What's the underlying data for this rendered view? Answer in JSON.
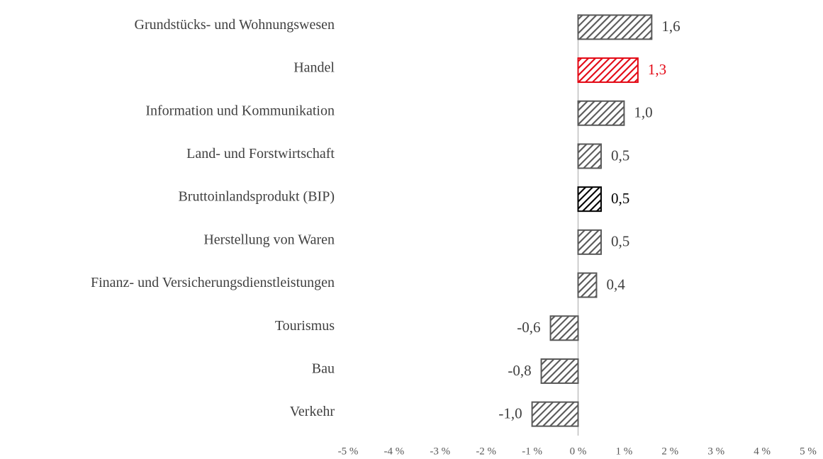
{
  "chart_data": {
    "type": "bar",
    "orientation": "horizontal",
    "categories": [
      "Grundstücks- und Wohnungswesen",
      "Handel",
      "Information und Kommunikation",
      "Land- und Forstwirtschaft",
      "Bruttoinlandsprodukt (BIP)",
      "Herstellung von Waren",
      "Finanz- und Versicherungsdienstleistungen",
      "Tourismus",
      "Bau",
      "Verkehr"
    ],
    "values": [
      1.6,
      1.3,
      1.0,
      0.5,
      0.5,
      0.5,
      0.4,
      -0.6,
      -0.8,
      -1.0
    ],
    "value_labels": [
      "1,6",
      "1,3",
      "1,0",
      "0,5",
      "0,5",
      "0,5",
      "0,4",
      "-0,6",
      "-0,8",
      "-1,0"
    ],
    "colors": [
      "#595959",
      "#e30613",
      "#595959",
      "#595959",
      "#000000",
      "#595959",
      "#595959",
      "#595959",
      "#595959",
      "#595959"
    ],
    "xlim": [
      -5,
      5
    ],
    "xticks": [
      {
        "value": -5,
        "label": "-5 %"
      },
      {
        "value": -4,
        "label": "-4 %"
      },
      {
        "value": -3,
        "label": "-3 %"
      },
      {
        "value": -2,
        "label": "-2 %"
      },
      {
        "value": -1,
        "label": "-1 %"
      },
      {
        "value": 0,
        "label": "0 %"
      },
      {
        "value": 1,
        "label": "1 %"
      },
      {
        "value": 2,
        "label": "2 %"
      },
      {
        "value": 3,
        "label": "3 %"
      },
      {
        "value": 4,
        "label": "4 %"
      },
      {
        "value": 5,
        "label": "5 %"
      }
    ],
    "grid": false
  }
}
